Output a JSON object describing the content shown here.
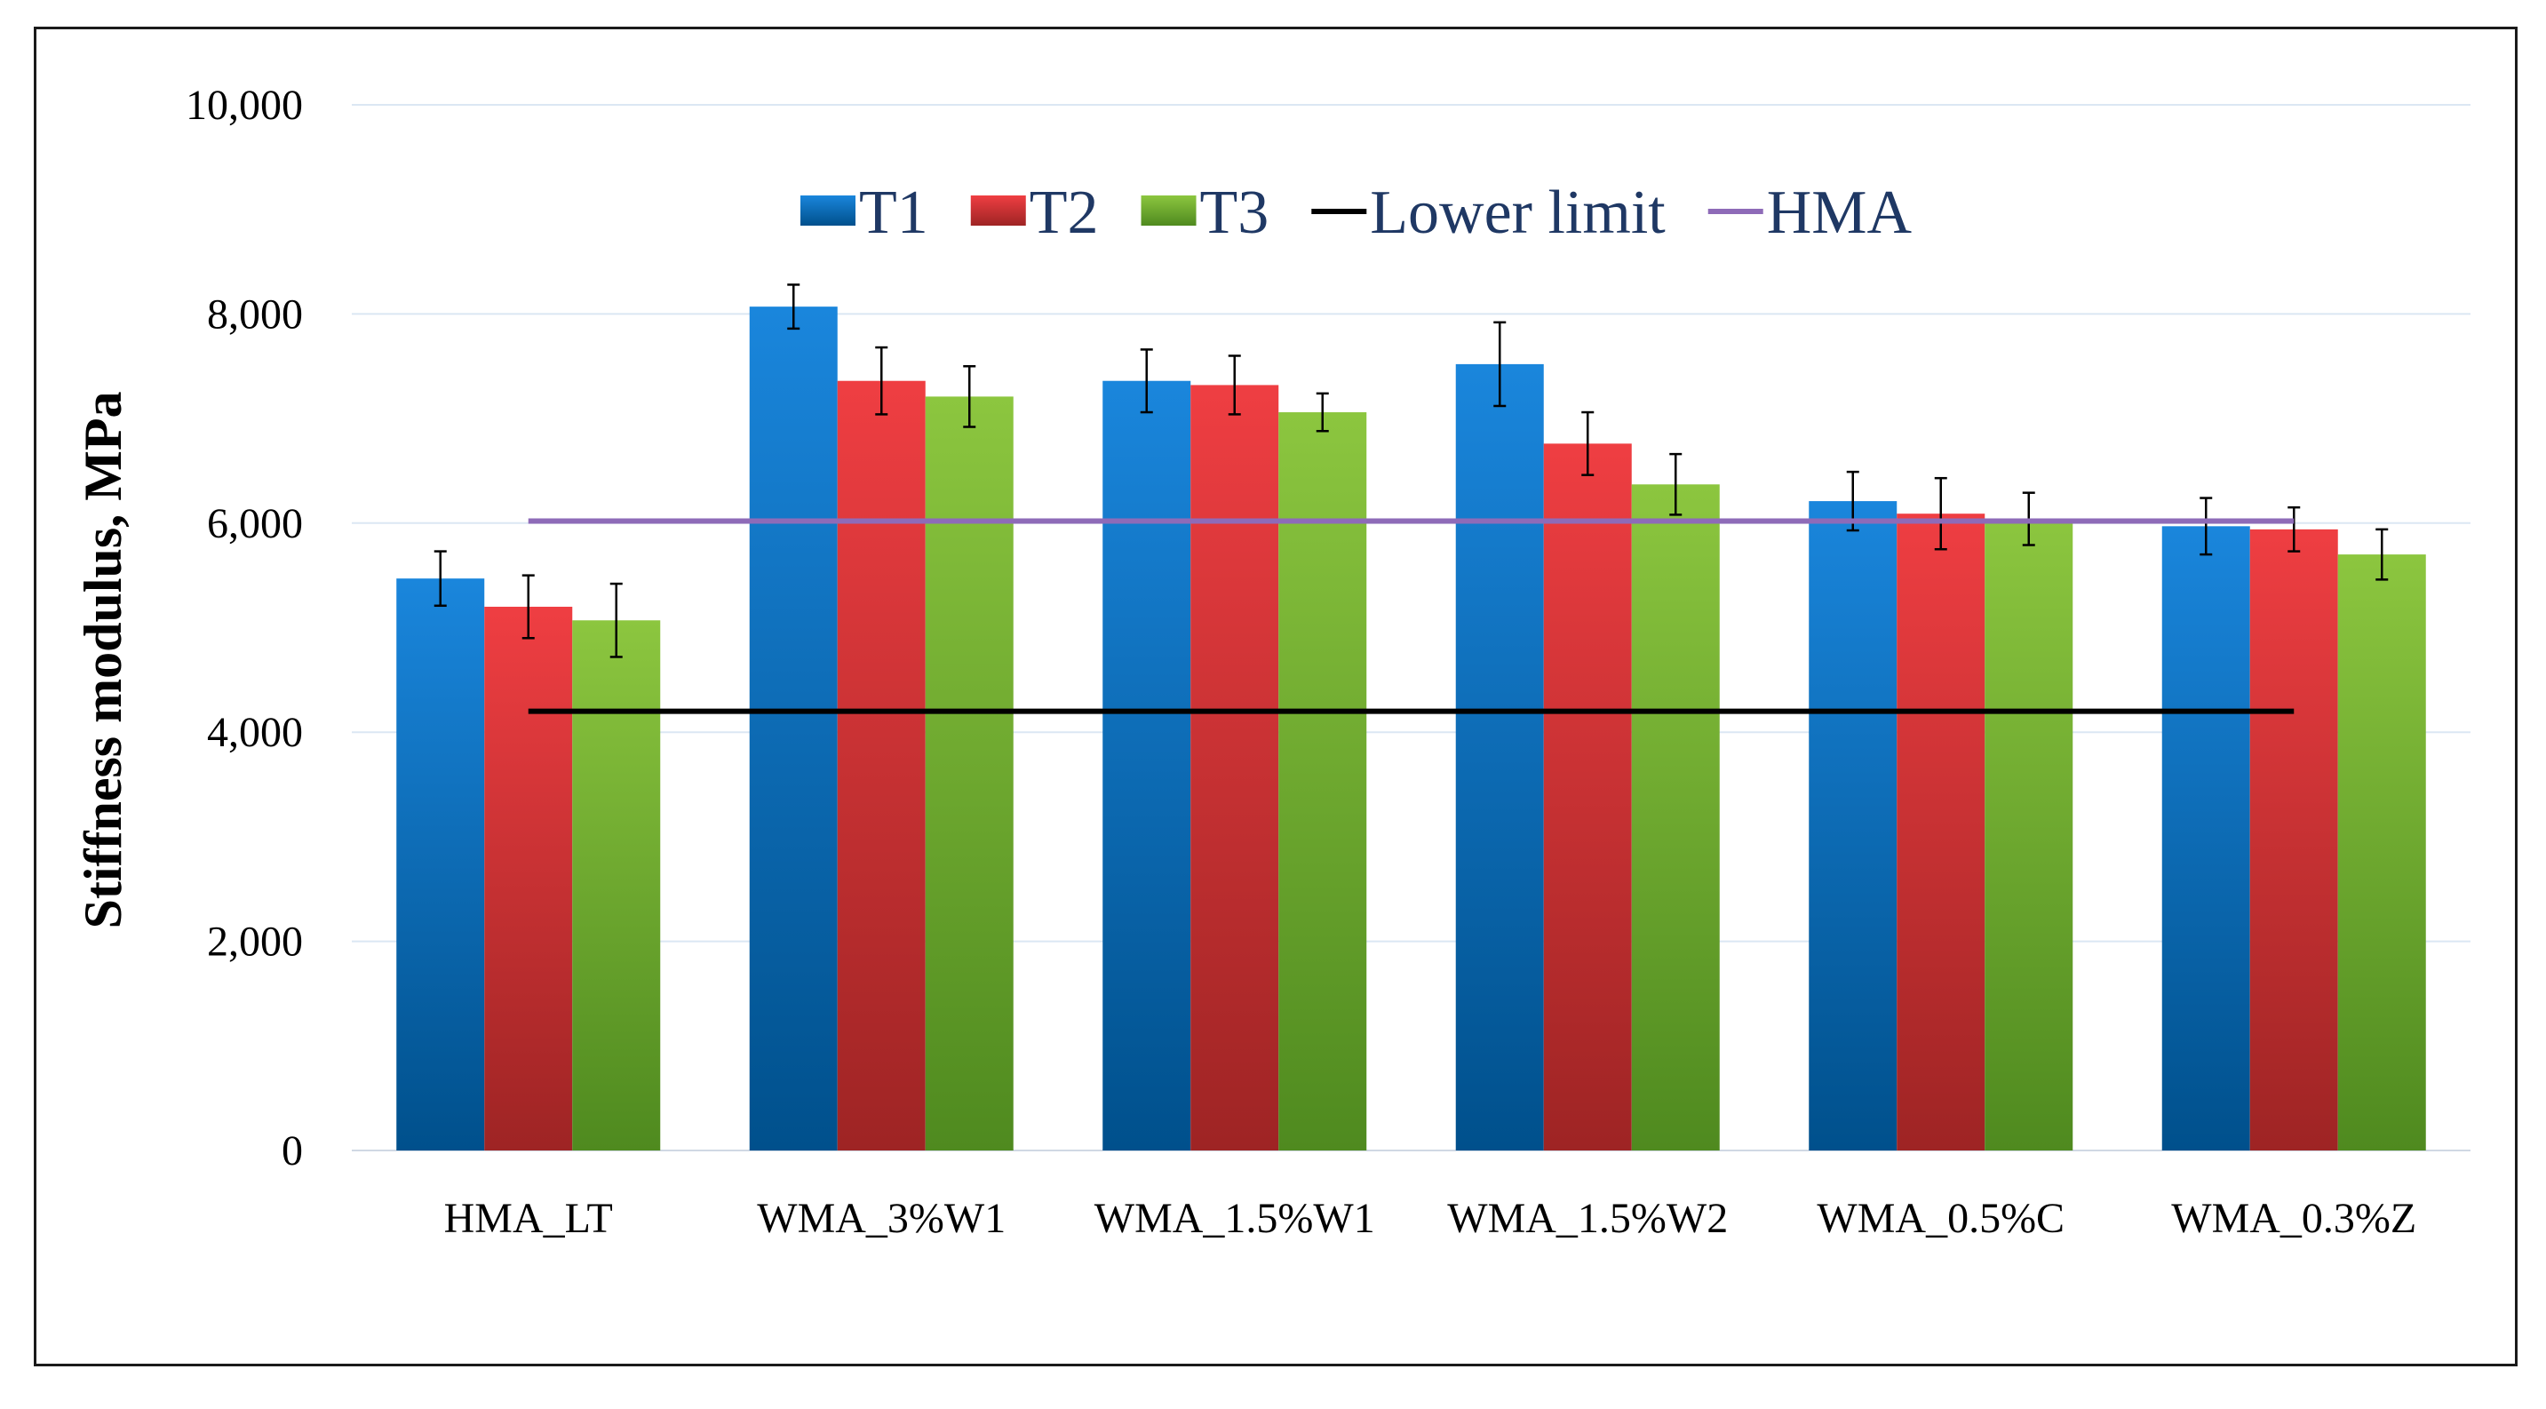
{
  "chart_data": {
    "type": "bar",
    "title": "",
    "xlabel": "",
    "ylabel": "Stiffness modulus, MPa",
    "ylim": [
      0,
      10000
    ],
    "yticks": [
      0,
      2000,
      4000,
      6000,
      8000,
      10000
    ],
    "ytick_labels": [
      "0",
      "2,000",
      "4,000",
      "6,000",
      "8,000",
      "10,000"
    ],
    "grid": true,
    "legend_position": "top-center",
    "categories": [
      "HMA_LT",
      "WMA_3%W1",
      "WMA_1.5%W1",
      "WMA_1.5%W2",
      "WMA_0.5%C",
      "WMA_0.3%Z"
    ],
    "series": [
      {
        "name": "T1",
        "color": "#0070c0",
        "values": [
          5470,
          8070,
          7360,
          7520,
          6210,
          5970
        ],
        "errors": [
          260,
          210,
          300,
          400,
          280,
          270
        ]
      },
      {
        "name": "T2",
        "color": "#e8383d",
        "values": [
          5200,
          7360,
          7320,
          6760,
          6090,
          5940
        ],
        "errors": [
          300,
          320,
          280,
          300,
          340,
          210
        ]
      },
      {
        "name": "T3",
        "color": "#7ab929",
        "values": [
          5070,
          7210,
          7060,
          6370,
          6040,
          5700
        ],
        "errors": [
          350,
          290,
          180,
          290,
          250,
          240
        ]
      }
    ],
    "reference_lines": [
      {
        "name": "Lower limit",
        "value": 4200,
        "color": "#000000"
      },
      {
        "name": "HMA",
        "value": 6020,
        "color": "#8e6bb8"
      }
    ]
  }
}
